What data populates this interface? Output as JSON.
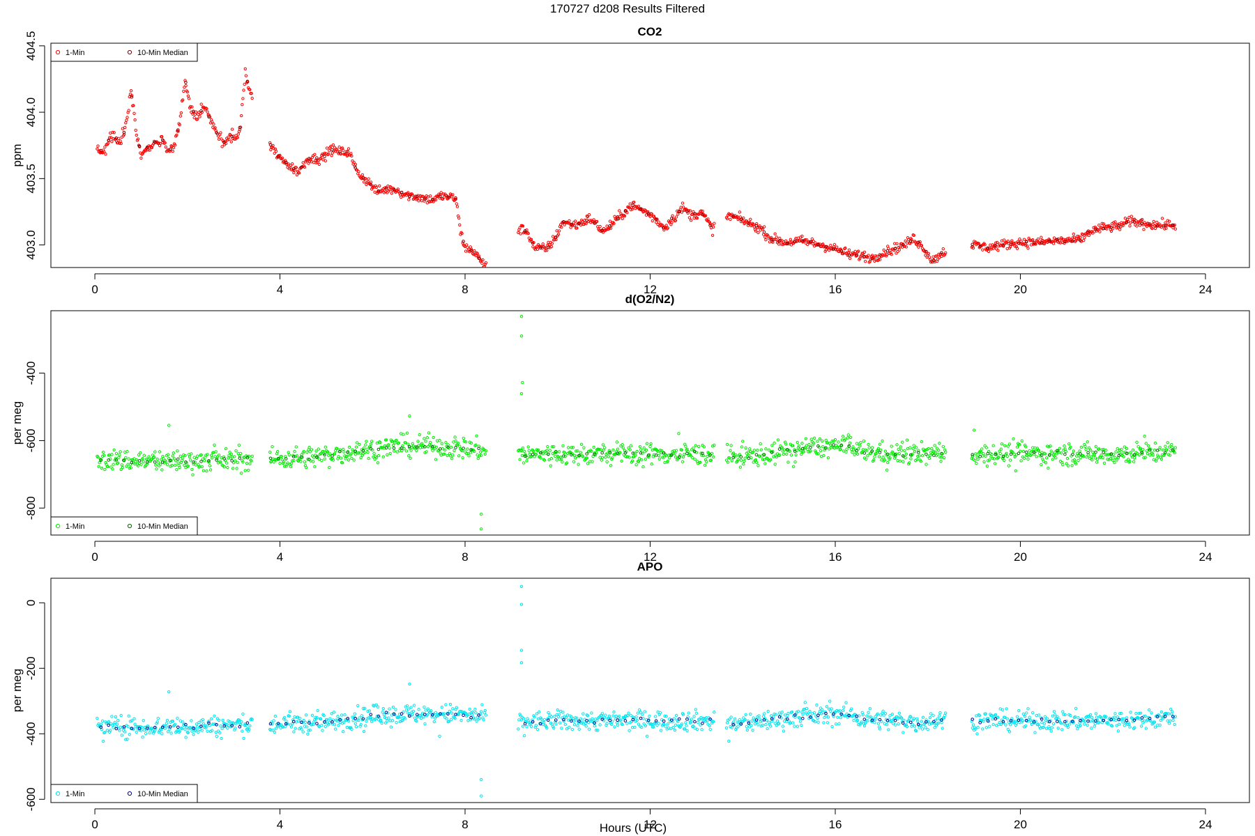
{
  "figure": {
    "title": "170727   d208   Results Filtered",
    "xlabel": "Hours (UTC)"
  },
  "chart_data": [
    {
      "type": "scatter",
      "title": "CO2",
      "ylabel": "ppm",
      "xlim": [
        -0.95,
        24.95
      ],
      "ylim": [
        402.83,
        404.52
      ],
      "xticks": [
        0,
        4,
        8,
        12,
        16,
        20,
        24
      ],
      "yticks": [
        403.0,
        403.5,
        404.0,
        404.5
      ],
      "ytick_labels": [
        "403.0",
        "403.5",
        "404.0",
        "404.5"
      ],
      "legend_position": "top-left",
      "series": [
        {
          "name": "1-Min",
          "color": "#ff0000",
          "kind": "points",
          "knots": [
            [
              0.05,
              403.73
            ],
            [
              0.2,
              403.7
            ],
            [
              0.35,
              403.83
            ],
            [
              0.55,
              403.78
            ],
            [
              0.65,
              403.87
            ],
            [
              0.78,
              404.15
            ],
            [
              0.9,
              403.85
            ],
            [
              1.0,
              403.68
            ],
            [
              1.2,
              403.75
            ],
            [
              1.45,
              403.8
            ],
            [
              1.55,
              403.72
            ],
            [
              1.7,
              403.72
            ],
            [
              1.85,
              403.95
            ],
            [
              1.95,
              404.25
            ],
            [
              2.05,
              404.05
            ],
            [
              2.2,
              403.95
            ],
            [
              2.35,
              404.05
            ],
            [
              2.55,
              403.9
            ],
            [
              2.7,
              403.8
            ],
            [
              2.8,
              403.77
            ],
            [
              2.95,
              403.82
            ],
            [
              3.05,
              403.8
            ],
            [
              3.15,
              403.9
            ],
            [
              3.25,
              404.3
            ],
            [
              3.35,
              404.15
            ],
            [
              3.8,
              403.75
            ],
            [
              4.0,
              403.65
            ],
            [
              4.2,
              403.6
            ],
            [
              4.4,
              403.55
            ],
            [
              4.6,
              403.65
            ],
            [
              4.9,
              403.65
            ],
            [
              5.1,
              403.72
            ],
            [
              5.3,
              403.7
            ],
            [
              5.5,
              403.7
            ],
            [
              5.6,
              403.6
            ],
            [
              5.75,
              403.52
            ],
            [
              5.9,
              403.48
            ],
            [
              6.1,
              403.4
            ],
            [
              6.3,
              403.42
            ],
            [
              6.5,
              403.42
            ],
            [
              6.7,
              403.38
            ],
            [
              7.0,
              403.36
            ],
            [
              7.3,
              403.34
            ],
            [
              7.5,
              403.37
            ],
            [
              7.8,
              403.35
            ],
            [
              7.9,
              403.1
            ],
            [
              8.0,
              402.98
            ],
            [
              8.2,
              402.95
            ],
            [
              8.4,
              402.85
            ],
            [
              9.2,
              403.12
            ],
            [
              9.35,
              403.1
            ],
            [
              9.5,
              402.98
            ],
            [
              9.75,
              402.97
            ],
            [
              9.95,
              403.05
            ],
            [
              10.1,
              403.17
            ],
            [
              10.4,
              403.15
            ],
            [
              10.7,
              403.2
            ],
            [
              11.0,
              403.1
            ],
            [
              11.3,
              403.2
            ],
            [
              11.6,
              403.3
            ],
            [
              11.9,
              403.25
            ],
            [
              12.1,
              403.2
            ],
            [
              12.3,
              403.13
            ],
            [
              12.5,
              403.2
            ],
            [
              12.7,
              403.28
            ],
            [
              12.9,
              403.22
            ],
            [
              13.1,
              403.25
            ],
            [
              13.35,
              403.12
            ],
            [
              13.7,
              403.22
            ],
            [
              13.9,
              403.2
            ],
            [
              14.1,
              403.17
            ],
            [
              14.4,
              403.12
            ],
            [
              14.6,
              403.05
            ],
            [
              14.9,
              403.02
            ],
            [
              15.3,
              403.03
            ],
            [
              15.7,
              403.0
            ],
            [
              16.0,
              402.97
            ],
            [
              16.3,
              402.93
            ],
            [
              16.6,
              402.92
            ],
            [
              16.8,
              402.9
            ],
            [
              17.1,
              402.95
            ],
            [
              17.5,
              403.0
            ],
            [
              17.7,
              403.05
            ],
            [
              17.9,
              402.98
            ],
            [
              18.1,
              402.88
            ],
            [
              18.35,
              402.95
            ],
            [
              19.0,
              403.0
            ],
            [
              19.3,
              402.98
            ],
            [
              19.6,
              403.0
            ],
            [
              20.0,
              403.02
            ],
            [
              20.4,
              403.02
            ],
            [
              20.8,
              403.03
            ],
            [
              21.3,
              403.04
            ],
            [
              21.5,
              403.1
            ],
            [
              21.8,
              403.13
            ],
            [
              22.1,
              403.14
            ],
            [
              22.4,
              403.18
            ],
            [
              22.7,
              403.16
            ],
            [
              23.0,
              403.15
            ],
            [
              23.35,
              403.15
            ]
          ],
          "gaps": [
            [
              3.4,
              3.78
            ],
            [
              8.45,
              9.15
            ],
            [
              13.4,
              13.65
            ],
            [
              18.4,
              18.95
            ]
          ],
          "noise": 0.018,
          "spikes": 0
        },
        {
          "name": "10-Min Median",
          "color": "#7a0000",
          "kind": "medians"
        }
      ]
    },
    {
      "type": "scatter",
      "title": "d(O2/N2)",
      "ylabel": "per meg",
      "xlim": [
        -0.95,
        24.95
      ],
      "ylim": [
        -880,
        -215
      ],
      "xticks": [
        0,
        4,
        8,
        12,
        16,
        20,
        24
      ],
      "yticks": [
        -800,
        -600,
        -400
      ],
      "ytick_labels": [
        "-800",
        "-600",
        "-400"
      ],
      "legend_position": "bottom-left",
      "series": [
        {
          "name": "1-Min",
          "color": "#00ee00",
          "kind": "points",
          "knots": [
            [
              0.05,
              -658
            ],
            [
              1.0,
              -660
            ],
            [
              2.0,
              -660
            ],
            [
              3.35,
              -656
            ],
            [
              3.8,
              -655
            ],
            [
              4.5,
              -650
            ],
            [
              5.0,
              -645
            ],
            [
              5.7,
              -630
            ],
            [
              6.3,
              -620
            ],
            [
              7.0,
              -615
            ],
            [
              7.8,
              -620
            ],
            [
              8.4,
              -628
            ],
            [
              9.2,
              -642
            ],
            [
              10.0,
              -640
            ],
            [
              11.0,
              -640
            ],
            [
              12.0,
              -640
            ],
            [
              13.3,
              -640
            ],
            [
              13.7,
              -650
            ],
            [
              14.5,
              -640
            ],
            [
              15.0,
              -630
            ],
            [
              15.5,
              -620
            ],
            [
              16.2,
              -615
            ],
            [
              16.5,
              -630
            ],
            [
              17.2,
              -640
            ],
            [
              17.8,
              -640
            ],
            [
              18.35,
              -635
            ],
            [
              19.0,
              -640
            ],
            [
              20.0,
              -638
            ],
            [
              21.0,
              -640
            ],
            [
              22.0,
              -640
            ],
            [
              23.35,
              -632
            ]
          ],
          "gaps": [
            [
              3.4,
              3.78
            ],
            [
              8.45,
              9.15
            ],
            [
              13.4,
              13.65
            ],
            [
              18.4,
              18.95
            ]
          ],
          "noise": 16,
          "spikes": 3
        },
        {
          "name": "10-Min Median",
          "color": "#006400",
          "kind": "medians"
        }
      ],
      "outliers": [
        [
          9.22,
          -232
        ],
        [
          9.22,
          -290
        ],
        [
          9.24,
          -428
        ],
        [
          9.22,
          -461
        ],
        [
          8.35,
          -818
        ],
        [
          8.35,
          -862
        ],
        [
          1.6,
          -555
        ],
        [
          6.8,
          -527
        ]
      ]
    },
    {
      "type": "scatter",
      "title": "APO",
      "ylabel": "per meg",
      "xlim": [
        -0.95,
        24.95
      ],
      "ylim": [
        -610,
        75
      ],
      "xticks": [
        0,
        4,
        8,
        12,
        16,
        20,
        24
      ],
      "yticks": [
        -600,
        -400,
        -200,
        0
      ],
      "ytick_labels": [
        "-600",
        "-400",
        "-200",
        "0"
      ],
      "legend_position": "bottom-left",
      "series": [
        {
          "name": "1-Min",
          "color": "#00e5ee",
          "kind": "points",
          "knots": [
            [
              0.05,
              -378
            ],
            [
              1.0,
              -380
            ],
            [
              2.0,
              -378
            ],
            [
              3.35,
              -372
            ],
            [
              3.8,
              -372
            ],
            [
              4.5,
              -368
            ],
            [
              5.0,
              -365
            ],
            [
              5.7,
              -350
            ],
            [
              6.3,
              -340
            ],
            [
              7.0,
              -340
            ],
            [
              7.8,
              -340
            ],
            [
              8.4,
              -350
            ],
            [
              9.2,
              -365
            ],
            [
              10.0,
              -360
            ],
            [
              11.0,
              -360
            ],
            [
              12.0,
              -360
            ],
            [
              13.3,
              -360
            ],
            [
              13.7,
              -372
            ],
            [
              14.5,
              -360
            ],
            [
              15.0,
              -350
            ],
            [
              15.5,
              -345
            ],
            [
              16.2,
              -338
            ],
            [
              16.5,
              -350
            ],
            [
              17.2,
              -360
            ],
            [
              17.8,
              -365
            ],
            [
              18.35,
              -358
            ],
            [
              19.0,
              -360
            ],
            [
              20.0,
              -360
            ],
            [
              21.0,
              -360
            ],
            [
              22.0,
              -360
            ],
            [
              23.35,
              -350
            ]
          ],
          "gaps": [
            [
              3.4,
              3.78
            ],
            [
              8.45,
              9.15
            ],
            [
              13.4,
              13.65
            ],
            [
              18.4,
              18.95
            ]
          ],
          "noise": 15,
          "spikes": 3
        },
        {
          "name": "10-Min Median",
          "color": "#00008b",
          "kind": "medians"
        }
      ],
      "outliers": [
        [
          9.22,
          50
        ],
        [
          9.22,
          -5
        ],
        [
          9.22,
          -145
        ],
        [
          9.22,
          -183
        ],
        [
          8.35,
          -540
        ],
        [
          8.35,
          -590
        ],
        [
          1.6,
          -272
        ],
        [
          6.8,
          -248
        ]
      ]
    }
  ]
}
